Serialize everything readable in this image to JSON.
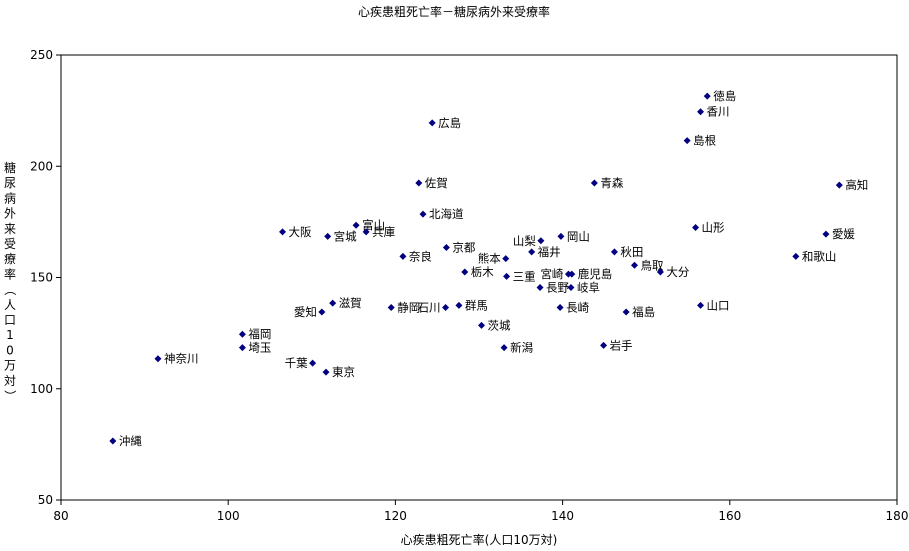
{
  "chart_data": {
    "type": "scatter",
    "title": "心疾患粗死亡率－糖尿病外来受療率",
    "xlabel": "心疾患粗死亡率(人口10万対)",
    "ylabel": "糖尿病外来受療率（人口10万対）",
    "xlim": [
      80,
      180
    ],
    "ylim": [
      50,
      250
    ],
    "xticks": [
      80,
      100,
      120,
      140,
      160,
      180
    ],
    "yticks": [
      50,
      100,
      150,
      200,
      250
    ],
    "marker_color": "#000080",
    "grid": false,
    "points": [
      {
        "label": "徳島",
        "x": 157.3,
        "y": 231.5
      },
      {
        "label": "香川",
        "x": 156.5,
        "y": 224.5
      },
      {
        "label": "広島",
        "x": 124.4,
        "y": 219.5
      },
      {
        "label": "島根",
        "x": 154.9,
        "y": 211.5
      },
      {
        "label": "佐賀",
        "x": 122.8,
        "y": 192.5
      },
      {
        "label": "青森",
        "x": 143.8,
        "y": 192.5
      },
      {
        "label": "高知",
        "x": 173.1,
        "y": 191.5
      },
      {
        "label": "北海道",
        "x": 123.3,
        "y": 178.5
      },
      {
        "label": "富山",
        "x": 115.3,
        "y": 173.5
      },
      {
        "label": "山形",
        "x": 155.9,
        "y": 172.5
      },
      {
        "label": "大阪",
        "x": 106.5,
        "y": 170.5
      },
      {
        "label": "兵庫",
        "x": 116.5,
        "y": 170.5
      },
      {
        "label": "愛媛",
        "x": 171.5,
        "y": 169.5
      },
      {
        "label": "宮城",
        "x": 111.9,
        "y": 168.5
      },
      {
        "label": "岡山",
        "x": 139.8,
        "y": 168.5
      },
      {
        "label": "山梨",
        "x": 137.4,
        "y": 166.5
      },
      {
        "label": "京都",
        "x": 126.1,
        "y": 163.5
      },
      {
        "label": "福井",
        "x": 136.3,
        "y": 161.5
      },
      {
        "label": "秋田",
        "x": 146.2,
        "y": 161.5
      },
      {
        "label": "奈良",
        "x": 120.9,
        "y": 159.5
      },
      {
        "label": "和歌山",
        "x": 167.9,
        "y": 159.5
      },
      {
        "label": "熊本",
        "x": 133.2,
        "y": 158.5
      },
      {
        "label": "鳥取",
        "x": 148.6,
        "y": 155.5
      },
      {
        "label": "栃木",
        "x": 128.3,
        "y": 152.5
      },
      {
        "label": "大分",
        "x": 151.7,
        "y": 152.5
      },
      {
        "label": "宮崎",
        "x": 140.7,
        "y": 151.5
      },
      {
        "label": "鹿児島",
        "x": 141.1,
        "y": 151.5
      },
      {
        "label": "三重",
        "x": 133.3,
        "y": 150.5
      },
      {
        "label": "長野",
        "x": 137.3,
        "y": 145.5
      },
      {
        "label": "岐阜",
        "x": 141.0,
        "y": 145.5
      },
      {
        "label": "滋賀",
        "x": 112.5,
        "y": 138.5
      },
      {
        "label": "群馬",
        "x": 127.6,
        "y": 137.5
      },
      {
        "label": "山口",
        "x": 156.5,
        "y": 137.5
      },
      {
        "label": "静岡",
        "x": 119.5,
        "y": 136.5
      },
      {
        "label": "石川",
        "x": 126.0,
        "y": 136.5
      },
      {
        "label": "長崎",
        "x": 139.7,
        "y": 136.5
      },
      {
        "label": "愛知",
        "x": 111.2,
        "y": 134.5
      },
      {
        "label": "福島",
        "x": 147.6,
        "y": 134.5
      },
      {
        "label": "茨城",
        "x": 130.3,
        "y": 128.5
      },
      {
        "label": "福岡",
        "x": 101.7,
        "y": 124.5
      },
      {
        "label": "岩手",
        "x": 144.9,
        "y": 119.5
      },
      {
        "label": "埼玉",
        "x": 101.7,
        "y": 118.5
      },
      {
        "label": "新潟",
        "x": 133.0,
        "y": 118.5
      },
      {
        "label": "神奈川",
        "x": 91.6,
        "y": 113.5
      },
      {
        "label": "千葉",
        "x": 110.1,
        "y": 111.5
      },
      {
        "label": "東京",
        "x": 111.7,
        "y": 107.5
      },
      {
        "label": "沖縄",
        "x": 86.2,
        "y": 76.5
      }
    ]
  }
}
